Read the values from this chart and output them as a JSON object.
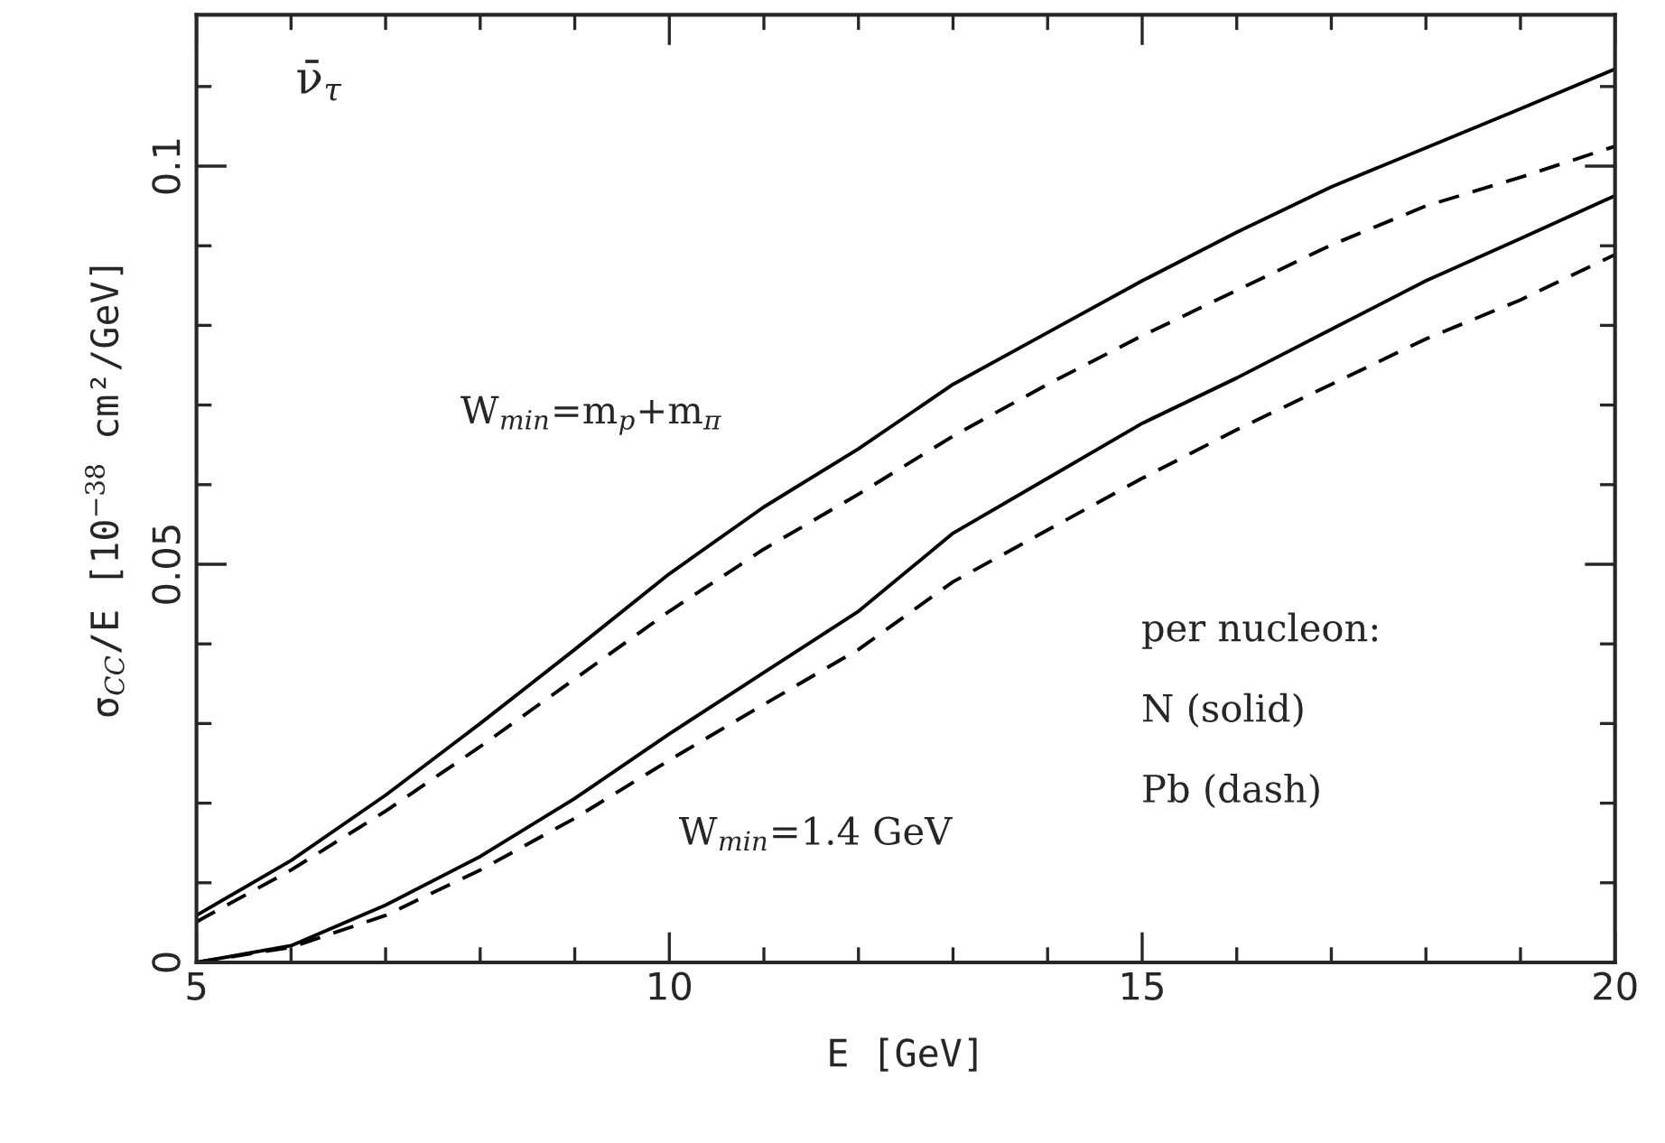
{
  "chart_data": {
    "type": "line",
    "xlabel": "E [GeV]",
    "ylabel": "σ$_{CC}$/E [10$^{−38}$ cm²/GeV]",
    "x": [
      5,
      6,
      7,
      8,
      9,
      10,
      11,
      12,
      13,
      14,
      15,
      16,
      17,
      18,
      19,
      20
    ],
    "series": [
      {
        "color": "#000000",
        "line_style": "solid",
        "values": [
          0.0059,
          0.0128,
          0.021,
          0.03,
          0.0393,
          0.0488,
          0.0572,
          0.0645,
          0.0726,
          0.0791,
          0.0856,
          0.0917,
          0.0974,
          0.1023,
          0.1072,
          0.1122
        ]
      },
      {
        "color": "#000000",
        "line_style": "dashed",
        "values": [
          0.0051,
          0.0116,
          0.019,
          0.0271,
          0.0356,
          0.0441,
          0.0519,
          0.0588,
          0.0661,
          0.0726,
          0.0787,
          0.0844,
          0.0901,
          0.095,
          0.0986,
          0.1025
        ]
      },
      {
        "color": "#000000",
        "line_style": "solid",
        "values": [
          0.0,
          0.0021,
          0.0072,
          0.0133,
          0.0206,
          0.0287,
          0.0364,
          0.0441,
          0.0539,
          0.0608,
          0.0677,
          0.0734,
          0.0795,
          0.0856,
          0.0909,
          0.0963
        ]
      },
      {
        "color": "#000000",
        "line_style": "dashed",
        "values": [
          0.0,
          0.0019,
          0.0059,
          0.0116,
          0.0181,
          0.0254,
          0.0324,
          0.0393,
          0.0478,
          0.0543,
          0.0608,
          0.0669,
          0.0726,
          0.0783,
          0.0832,
          0.0889
        ]
      }
    ],
    "xlim": [
      5,
      20
    ],
    "ylim": [
      0,
      0.119
    ],
    "xticks": [
      5,
      {
        "value": 6,
        "label": null
      },
      {
        "value": 7,
        "label": null
      },
      {
        "value": 8,
        "label": null
      },
      {
        "value": 9,
        "label": null
      },
      10,
      {
        "value": 11,
        "label": null
      },
      {
        "value": 12,
        "label": null
      },
      {
        "value": 13,
        "label": null
      },
      {
        "value": 14,
        "label": null
      },
      15,
      {
        "value": 16,
        "label": null
      },
      {
        "value": 17,
        "label": null
      },
      {
        "value": 18,
        "label": null
      },
      {
        "value": 19,
        "label": null
      },
      20
    ],
    "yticks": [
      0,
      {
        "value": 0.01,
        "label": null
      },
      {
        "value": 0.02,
        "label": null
      },
      {
        "value": 0.03,
        "label": null
      },
      {
        "value": 0.04,
        "label": null
      },
      0.05,
      {
        "value": 0.06,
        "label": null
      },
      {
        "value": 0.07,
        "label": null
      },
      {
        "value": 0.08,
        "label": null
      },
      {
        "value": 0.09,
        "label": null
      },
      0.1,
      {
        "value": 0.11,
        "label": null
      }
    ],
    "annotations": [
      "ν̄$_{τ}$",
      "W$_{min}$=m$_{p}$+m$_{π}$",
      "W$_{min}$=1.4 GeV",
      "per nucleon:",
      "N (solid)",
      "Pb (dash)"
    ],
    "grid": false,
    "legend": false,
    "marker": "none"
  }
}
